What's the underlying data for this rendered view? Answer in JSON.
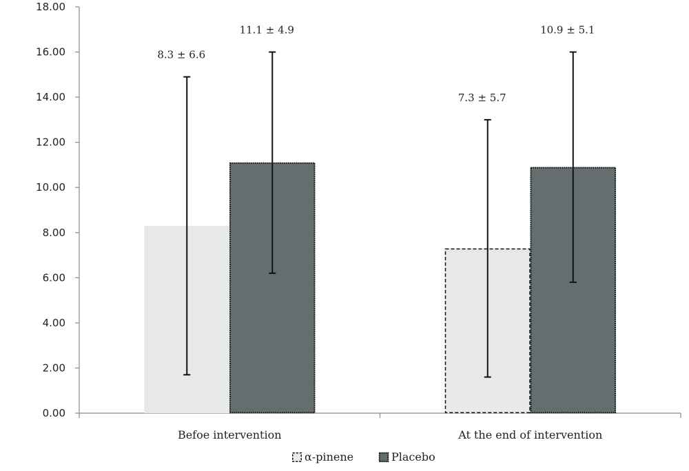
{
  "chart_data": {
    "type": "bar",
    "title": "",
    "xlabel": "",
    "ylabel": "",
    "ylim": [
      0,
      18
    ],
    "yticks": [
      0,
      2,
      4,
      6,
      8,
      10,
      12,
      14,
      16,
      18
    ],
    "ytick_labels": [
      "0.00",
      "2.00",
      "4.00",
      "6.00",
      "8.00",
      "10.00",
      "12.00",
      "14.00",
      "16.00",
      "18.00"
    ],
    "categories": [
      "Befoe intervention",
      "At the end of intervention"
    ],
    "grid": false,
    "legend_position": "bottom",
    "series": [
      {
        "name": "α-pinene",
        "values": [
          8.3,
          7.3
        ],
        "sd": [
          6.6,
          5.7
        ],
        "data_labels": [
          "8.3 ± 6.6",
          "7.3 ± 5.7"
        ],
        "fill": "#e7e9e6",
        "border": "#111111",
        "border_style": "dashed"
      },
      {
        "name": "Placebo",
        "values": [
          11.1,
          10.9
        ],
        "sd": [
          4.9,
          5.1
        ],
        "data_labels": [
          "11.1 ± 4.9",
          "10.9 ± 5.1"
        ],
        "fill": "#646e6e",
        "border": "#111111",
        "border_style": "dotted"
      }
    ]
  },
  "colors": {
    "axis": "#888888",
    "error_bar": "#111111",
    "text": "#222222"
  }
}
